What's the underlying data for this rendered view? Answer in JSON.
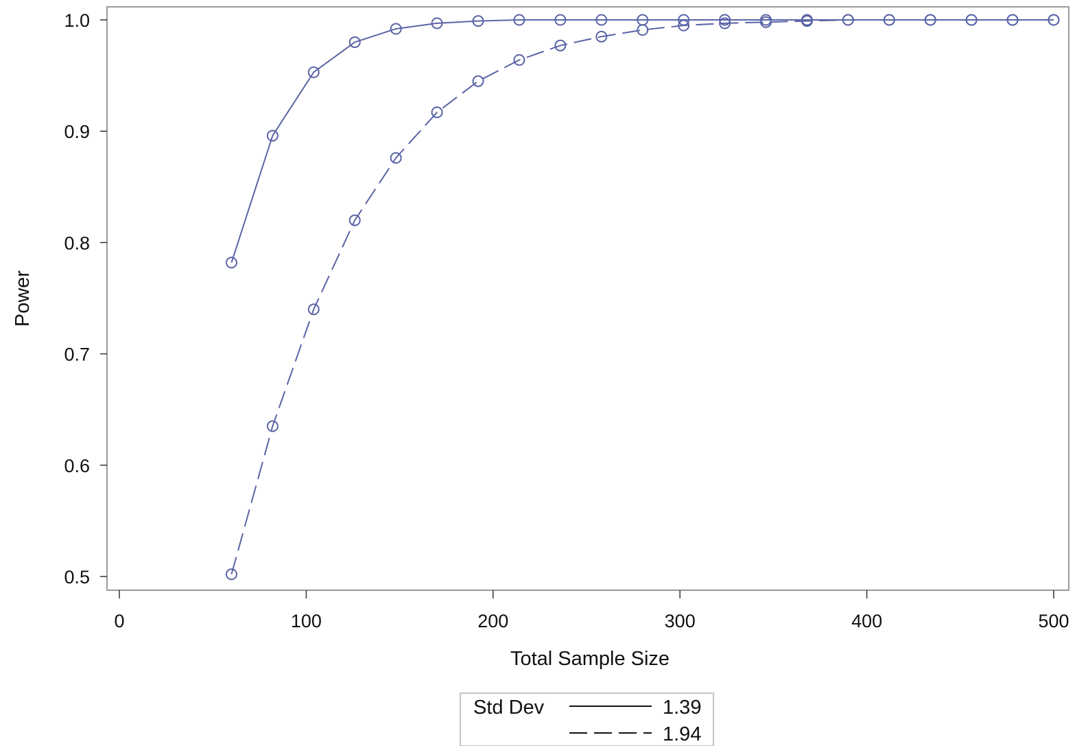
{
  "chart_data": {
    "type": "line",
    "xlabel": "Total Sample Size",
    "ylabel": "Power",
    "xlim": [
      0,
      500
    ],
    "ylim": [
      0.5,
      1.0
    ],
    "x_ticks": [
      "0",
      "100",
      "200",
      "300",
      "400",
      "500"
    ],
    "y_ticks": [
      "0.5",
      "0.6",
      "0.7",
      "0.8",
      "0.9",
      "1.0"
    ],
    "grid": false,
    "legend": {
      "title": "Std Dev",
      "placement": "bottom-center"
    },
    "line_color": "#5a64a6",
    "marker": "open-circle",
    "series": [
      {
        "name": "1.39",
        "line_style": "solid",
        "x": [
          60,
          82,
          104,
          126,
          148,
          170,
          192,
          214,
          236,
          258,
          280,
          302,
          324,
          346,
          368,
          390,
          412,
          434,
          456,
          478,
          500
        ],
        "values": [
          0.782,
          0.896,
          0.953,
          0.98,
          0.992,
          0.997,
          0.999,
          1.0,
          1.0,
          1.0,
          1.0,
          1.0,
          1.0,
          1.0,
          1.0,
          1.0,
          1.0,
          1.0,
          1.0,
          1.0,
          1.0
        ]
      },
      {
        "name": "1.94",
        "line_style": "dashed",
        "x": [
          60,
          82,
          104,
          126,
          148,
          170,
          192,
          214,
          236,
          258,
          280,
          302,
          324,
          346,
          368,
          390,
          412,
          434,
          456,
          478,
          500
        ],
        "values": [
          0.502,
          0.635,
          0.74,
          0.82,
          0.876,
          0.917,
          0.945,
          0.964,
          0.977,
          0.985,
          0.991,
          0.995,
          0.997,
          0.998,
          0.999,
          1.0,
          1.0,
          1.0,
          1.0,
          1.0,
          1.0
        ]
      }
    ]
  }
}
